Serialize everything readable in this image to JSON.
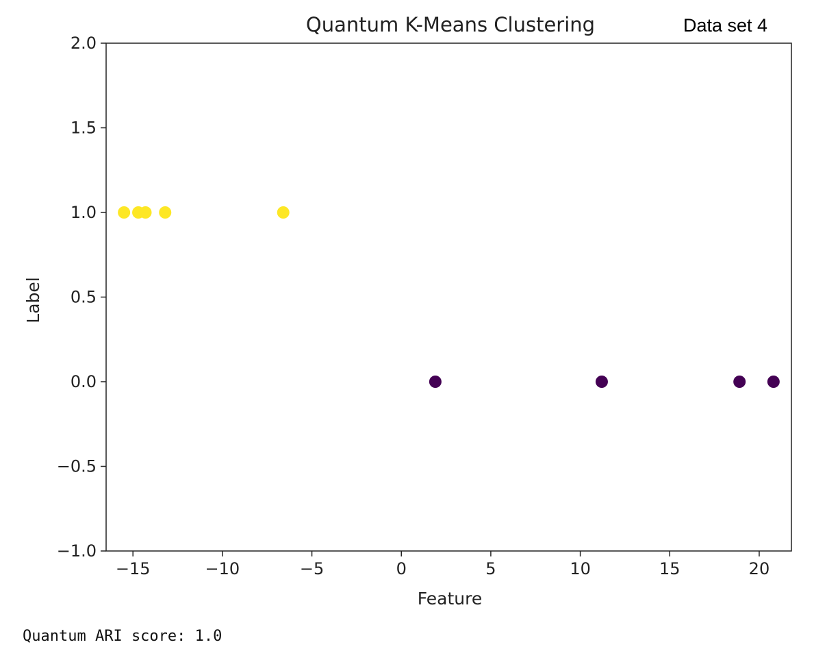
{
  "dataset_label": "Data set 4",
  "output_text": "Quantum ARI score: 1.0",
  "chart_data": {
    "type": "scatter",
    "title": "Quantum K-Means Clustering",
    "xlabel": "Feature",
    "ylabel": "Label",
    "xlim": [
      -16.5,
      21.8
    ],
    "ylim": [
      -1.0,
      2.0
    ],
    "xticks": [
      -15,
      -10,
      -5,
      0,
      5,
      10,
      15,
      20
    ],
    "xtick_labels": [
      "−15",
      "−10",
      "−5",
      "0",
      "5",
      "10",
      "15",
      "20"
    ],
    "yticks": [
      -1.0,
      -0.5,
      0.0,
      0.5,
      1.0,
      1.5,
      2.0
    ],
    "ytick_labels": [
      "−1.0",
      "−0.5",
      "0.0",
      "0.5",
      "1.0",
      "1.5",
      "2.0"
    ],
    "grid": false,
    "points": [
      {
        "x": -15.5,
        "y": 1.0,
        "cluster": 1
      },
      {
        "x": -14.7,
        "y": 1.0,
        "cluster": 1
      },
      {
        "x": -14.3,
        "y": 1.0,
        "cluster": 1
      },
      {
        "x": -13.2,
        "y": 1.0,
        "cluster": 1
      },
      {
        "x": -6.6,
        "y": 1.0,
        "cluster": 1
      },
      {
        "x": 1.9,
        "y": 0.0,
        "cluster": 0
      },
      {
        "x": 11.2,
        "y": 0.0,
        "cluster": 0
      },
      {
        "x": 18.9,
        "y": 0.0,
        "cluster": 0
      },
      {
        "x": 20.8,
        "y": 0.0,
        "cluster": 0
      }
    ],
    "colors": {
      "cluster_0": "#440154",
      "cluster_1": "#fde725"
    }
  }
}
